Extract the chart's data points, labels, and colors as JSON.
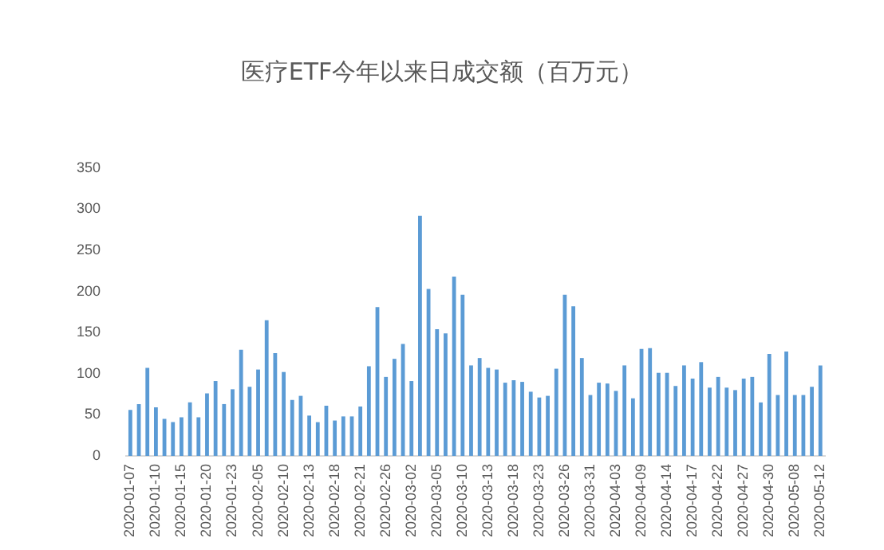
{
  "chart_data": {
    "type": "bar",
    "title": "医疗ETF今年以来日成交额（百万元）",
    "categories": [
      "2020-01-07",
      null,
      null,
      "2020-01-10",
      null,
      null,
      "2020-01-15",
      null,
      null,
      "2020-01-20",
      null,
      null,
      "2020-01-23",
      null,
      null,
      "2020-02-05",
      null,
      null,
      "2020-02-10",
      null,
      null,
      "2020-02-13",
      null,
      null,
      "2020-02-18",
      null,
      null,
      "2020-02-21",
      null,
      null,
      "2020-02-26",
      null,
      null,
      "2020-03-02",
      null,
      null,
      "2020-03-05",
      null,
      null,
      "2020-03-10",
      null,
      null,
      "2020-03-13",
      null,
      null,
      "2020-03-18",
      null,
      null,
      "2020-03-23",
      null,
      null,
      "2020-03-26",
      null,
      null,
      "2020-03-31",
      null,
      null,
      "2020-04-03",
      null,
      null,
      "2020-04-09",
      null,
      null,
      "2020-04-14",
      null,
      null,
      "2020-04-17",
      null,
      null,
      "2020-04-22",
      null,
      null,
      "2020-04-27",
      null,
      null,
      "2020-04-30",
      null,
      null,
      "2020-05-08",
      null,
      null,
      "2020-05-12"
    ],
    "values": [
      56,
      63,
      107,
      59,
      45,
      41,
      47,
      65,
      47,
      76,
      91,
      63,
      81,
      129,
      84,
      105,
      165,
      125,
      102,
      68,
      73,
      49,
      41,
      61,
      43,
      48,
      48,
      60,
      109,
      181,
      96,
      118,
      136,
      91,
      292,
      203,
      154,
      149,
      218,
      196,
      110,
      119,
      107,
      105,
      89,
      92,
      90,
      78,
      71,
      73,
      106,
      196,
      182,
      119,
      74,
      89,
      88,
      79,
      110,
      70,
      130,
      131,
      101,
      101,
      85,
      110,
      94,
      114,
      83,
      96,
      83,
      80,
      94,
      96,
      65,
      124,
      74,
      127,
      74,
      74,
      84,
      110
    ],
    "color": "#5b9bd5",
    "ylim": [
      0,
      350
    ],
    "yticks": [
      0,
      50,
      100,
      150,
      200,
      250,
      300,
      350
    ],
    "grid": false,
    "legend": false
  }
}
